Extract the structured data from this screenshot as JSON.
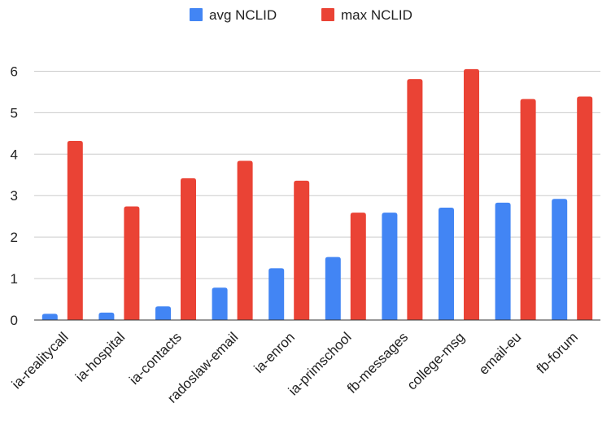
{
  "chart_data": {
    "type": "bar",
    "categories": [
      "ia-realitycall",
      "ia-hospital",
      "ia-contacts",
      "radoslaw-email",
      "ia-enron",
      "ia-primschool",
      "fb-messages",
      "college-msg",
      "email-eu",
      "fb-forum"
    ],
    "series": [
      {
        "name": "avg NCLID",
        "color": "#4285f4",
        "values": [
          0.15,
          0.18,
          0.33,
          0.78,
          1.25,
          1.52,
          2.59,
          2.71,
          2.83,
          2.92
        ]
      },
      {
        "name": "max NCLID",
        "color": "#ea4335",
        "values": [
          4.32,
          2.74,
          3.42,
          3.84,
          3.36,
          2.59,
          5.81,
          6.05,
          5.33,
          5.39
        ]
      }
    ],
    "yticks": [
      0,
      1,
      2,
      3,
      4,
      5,
      6
    ],
    "ylim": [
      0,
      6.5
    ],
    "legend_position": "top-center",
    "grid": true
  }
}
